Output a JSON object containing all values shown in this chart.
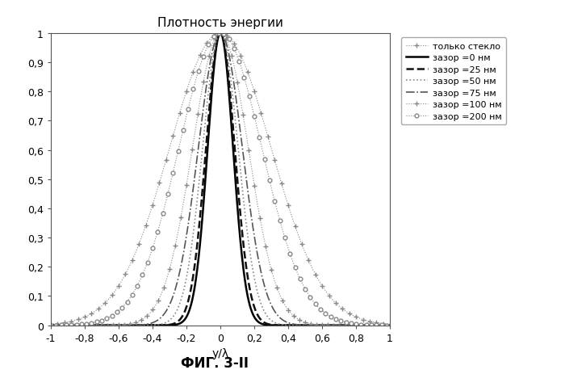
{
  "title": "Плотность энергии",
  "xlabel": "y/λ",
  "footer": "ФИГ. 3-II",
  "xlim": [
    -1,
    1
  ],
  "ylim": [
    0,
    1
  ],
  "yticks": [
    0,
    0.1,
    0.2,
    0.3,
    0.4,
    0.5,
    0.6,
    0.7,
    0.8,
    0.9,
    1
  ],
  "xticks": [
    -1,
    -0.8,
    -0.6,
    -0.4,
    -0.2,
    0,
    0.2,
    0.4,
    0.6,
    0.8,
    1
  ],
  "ytick_labels": [
    "0",
    "0,1",
    "0,2",
    "0,3",
    "0,4",
    "0,5",
    "0,6",
    "0,7",
    "0,8",
    "0,9",
    "1"
  ],
  "xtick_labels": [
    "-1",
    "-0,8",
    "-0,6",
    "-0,4",
    "-0,2",
    "0",
    "0,2",
    "0,4",
    "0,6",
    "0,8",
    "1"
  ],
  "series": [
    {
      "label": "только стекло",
      "sigma": 0.3,
      "color": "#888888",
      "linestyle": "dotted",
      "marker": "+",
      "markersize": 4,
      "linewidth": 0.8,
      "markerfacecolor": "none",
      "marker_every": 60
    },
    {
      "label": "зазор =0 нм",
      "sigma": 0.075,
      "color": "#000000",
      "linestyle": "solid",
      "marker": null,
      "markersize": 0,
      "linewidth": 1.8,
      "markerfacecolor": "none",
      "marker_every": null
    },
    {
      "label": "зазор =25 нм",
      "sigma": 0.085,
      "color": "#111111",
      "linestyle": "dashed",
      "marker": null,
      "markersize": 0,
      "linewidth": 1.8,
      "markerfacecolor": "none",
      "marker_every": null
    },
    {
      "label": "зазор =50 нм",
      "sigma": 0.105,
      "color": "#888888",
      "linestyle": "dotted",
      "marker": null,
      "markersize": 0,
      "linewidth": 1.2,
      "markerfacecolor": "none",
      "marker_every": null
    },
    {
      "label": "зазор =75 нм",
      "sigma": 0.13,
      "color": "#555555",
      "linestyle": "dashdot",
      "marker": null,
      "markersize": 0,
      "linewidth": 1.2,
      "markerfacecolor": "none",
      "marker_every": null
    },
    {
      "label": "зазор =100 нм",
      "sigma": 0.165,
      "color": "#888888",
      "linestyle": "dotted",
      "marker": "+",
      "markersize": 4,
      "linewidth": 0.8,
      "markerfacecolor": "none",
      "marker_every": 50
    },
    {
      "label": "зазор =200 нм",
      "sigma": 0.245,
      "color": "#888888",
      "linestyle": "dotted",
      "marker": "o",
      "markersize": 3.5,
      "linewidth": 0.8,
      "markerfacecolor": "white",
      "marker_every": 45
    }
  ]
}
